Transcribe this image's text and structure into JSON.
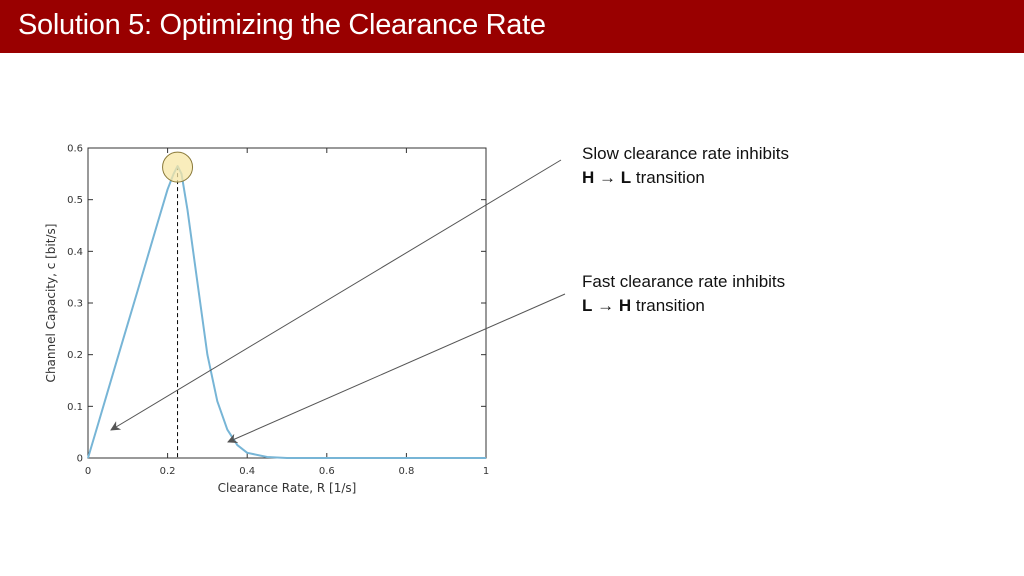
{
  "slide": {
    "title": "Solution 5: Optimizing the Clearance Rate"
  },
  "annotations": [
    {
      "line1": "Slow clearance rate inhibits",
      "from_state": "H",
      "arrow": "→",
      "to_state": "L",
      "suffix": "transition"
    },
    {
      "line1": "Fast clearance rate inhibits",
      "from_state": "L",
      "arrow": "→",
      "to_state": "H",
      "suffix": "transition"
    }
  ],
  "chart_data": {
    "type": "line",
    "xlabel": "Clearance Rate, R [1/s]",
    "ylabel": "Channel Capacity, c [bit/s]",
    "xlim": [
      0,
      1
    ],
    "ylim": [
      0,
      0.6
    ],
    "x_ticks": [
      "0",
      "0.2",
      "0.4",
      "0.6",
      "0.8",
      "1"
    ],
    "y_ticks": [
      "0",
      "0.1",
      "0.2",
      "0.3",
      "0.4",
      "0.5",
      "0.6"
    ],
    "grid": false,
    "series_color": "#77b5d6",
    "highlight_color": "#f7e7a6",
    "peak": {
      "x": 0.225,
      "y": 0.565
    },
    "series": [
      {
        "x": [
          0,
          0.025,
          0.05,
          0.075,
          0.1,
          0.125,
          0.15,
          0.175,
          0.2,
          0.215,
          0.225,
          0.235,
          0.25,
          0.275,
          0.3,
          0.325,
          0.35,
          0.375,
          0.4,
          0.45,
          0.5,
          0.6,
          0.8,
          1.0
        ],
        "y": [
          0,
          0.065,
          0.13,
          0.195,
          0.26,
          0.325,
          0.39,
          0.455,
          0.52,
          0.55,
          0.565,
          0.55,
          0.48,
          0.34,
          0.2,
          0.11,
          0.055,
          0.025,
          0.01,
          0.002,
          0,
          0,
          0,
          0
        ]
      }
    ]
  }
}
